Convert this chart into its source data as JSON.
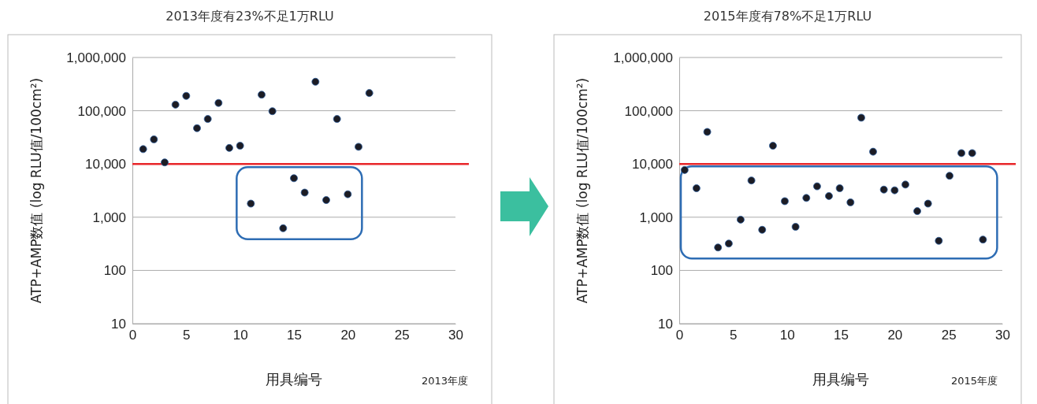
{
  "chart_data": [
    {
      "type": "scatter",
      "title": "2013年度有23%不足1万RLU",
      "xlabel": "用具编号",
      "ylabel": "ATP+AMP数值 (log RLU值/100cm²)",
      "log": "y",
      "grid": "y",
      "marker": "circle",
      "xlim": [
        0,
        30
      ],
      "xticks": [
        0,
        5,
        10,
        15,
        20,
        25,
        30
      ],
      "ylim": [
        10,
        1000000
      ],
      "yticks": [
        {
          "value": 10,
          "label": "10"
        },
        {
          "value": 100,
          "label": "100"
        },
        {
          "value": 1000,
          "label": "1,000"
        },
        {
          "value": 10000,
          "label": "10,000"
        },
        {
          "value": 100000,
          "label": "100,000"
        },
        {
          "value": 1000000,
          "label": "1,000,000"
        }
      ],
      "series": [
        {
          "color": "#1c1c24",
          "x": [
            1,
            2,
            3,
            4,
            5,
            6,
            7,
            8,
            9,
            10,
            11,
            12,
            13,
            14,
            15,
            16,
            17,
            18,
            19,
            20,
            21,
            22
          ],
          "values": [
            19000,
            29000,
            10700,
            130000,
            190000,
            47000,
            70000,
            140000,
            20000,
            22000,
            1800,
            200000,
            98000,
            620,
            5400,
            2900,
            350000,
            2100,
            70000,
            2700,
            21000,
            215000
          ]
        }
      ],
      "ref_lines": [
        {
          "axis": "y",
          "value": 10000,
          "color": "#e8262a"
        }
      ],
      "annotations": [
        "2013年度"
      ]
    },
    {
      "type": "scatter",
      "title": "2015年度有78%不足1万RLU",
      "xlabel": "用具编号",
      "ylabel": "ATP+AMP数值 (log RLU值/100cm²)",
      "log": "y",
      "grid": "y",
      "marker": "circle",
      "xlim": [
        0,
        30
      ],
      "xticks": [
        0,
        5,
        10,
        15,
        20,
        25,
        30
      ],
      "ylim": [
        10,
        1000000
      ],
      "yticks": [
        {
          "value": 10,
          "label": "10"
        },
        {
          "value": 100,
          "label": "100"
        },
        {
          "value": 1000,
          "label": "1,000"
        },
        {
          "value": 10000,
          "label": "10,000"
        },
        {
          "value": 100000,
          "label": "100,000"
        },
        {
          "value": 1000000,
          "label": "1,000,000"
        }
      ],
      "series": [
        {
          "color": "#1c1c24",
          "x": [
            0.5,
            1.6,
            2.6,
            3.6,
            4.6,
            5.7,
            6.7,
            7.7,
            8.7,
            9.8,
            10.8,
            11.8,
            12.8,
            13.9,
            14.9,
            15.9,
            16.9,
            18,
            19,
            20,
            21,
            22.1,
            23.1,
            24.1,
            25.1,
            26.2,
            27.2,
            28.2
          ],
          "values": [
            7700,
            3500,
            40000,
            270,
            320,
            900,
            4900,
            580,
            22000,
            2000,
            660,
            2300,
            3800,
            2500,
            3500,
            1900,
            74000,
            17000,
            3300,
            3200,
            4100,
            1300,
            1800,
            360,
            6000,
            16000,
            16000,
            380
          ]
        }
      ],
      "ref_lines": [
        {
          "axis": "y",
          "value": 10000,
          "color": "#e8262a"
        }
      ],
      "annotations": [
        "2015年度"
      ]
    }
  ]
}
